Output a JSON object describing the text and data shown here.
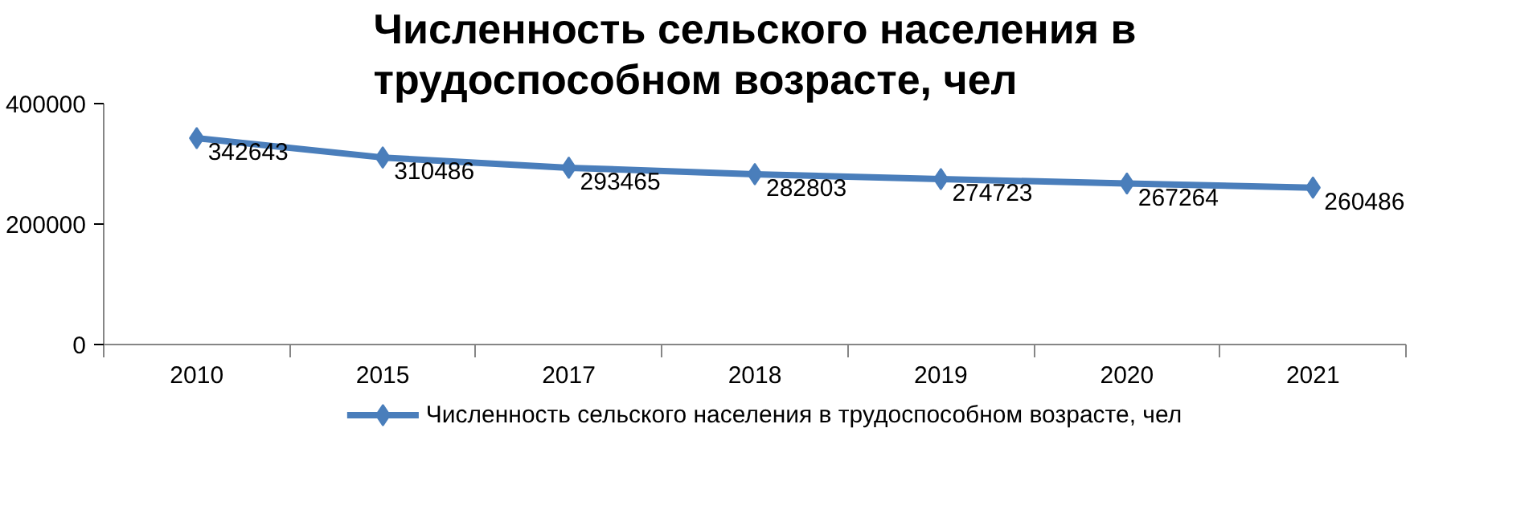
{
  "chart_data": {
    "type": "line",
    "title": "Численность сельского населения в\nтрудоспособном возрасте, чел",
    "categories": [
      "2010",
      "2015",
      "2017",
      "2018",
      "2019",
      "2020",
      "2021"
    ],
    "series": [
      {
        "name": "Численность сельского населения в трудоспособном возрасте, чел",
        "color": "#4a7ebb",
        "values": [
          342643,
          310486,
          293465,
          282803,
          274723,
          267264,
          260486
        ]
      }
    ],
    "ylim": [
      0,
      400000
    ],
    "yticks": [
      0,
      200000,
      400000
    ],
    "data_labels": true,
    "marker": "diamond",
    "line_style": "solid",
    "grid": false,
    "legend": "bottom"
  }
}
